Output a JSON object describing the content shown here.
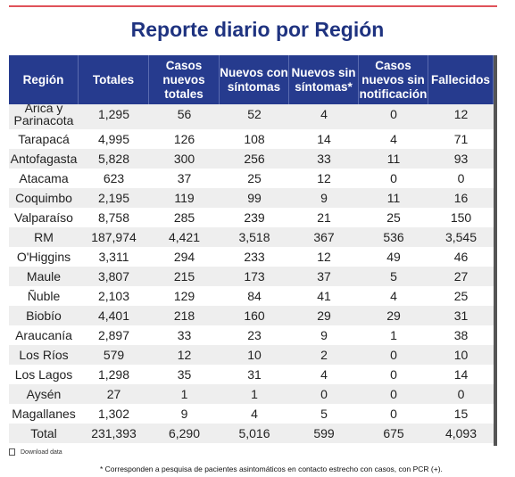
{
  "header": {
    "title": "Reporte diario por Región"
  },
  "table": {
    "columns": [
      "Región",
      "Totales",
      "Casos nuevos totales",
      "Nuevos con síntomas",
      "Nuevos sin síntomas*",
      "Casos nuevos sin notificación",
      "Fallecidos"
    ],
    "rows": [
      [
        "Arica y Parinacota",
        "1,295",
        "56",
        "52",
        "4",
        "0",
        "12"
      ],
      [
        "Tarapacá",
        "4,995",
        "126",
        "108",
        "14",
        "4",
        "71"
      ],
      [
        "Antofagasta",
        "5,828",
        "300",
        "256",
        "33",
        "11",
        "93"
      ],
      [
        "Atacama",
        "623",
        "37",
        "25",
        "12",
        "0",
        "0"
      ],
      [
        "Coquimbo",
        "2,195",
        "119",
        "99",
        "9",
        "11",
        "16"
      ],
      [
        "Valparaíso",
        "8,758",
        "285",
        "239",
        "21",
        "25",
        "150"
      ],
      [
        "RM",
        "187,974",
        "4,421",
        "3,518",
        "367",
        "536",
        "3,545"
      ],
      [
        "O'Higgins",
        "3,311",
        "294",
        "233",
        "12",
        "49",
        "46"
      ],
      [
        "Maule",
        "3,807",
        "215",
        "173",
        "37",
        "5",
        "27"
      ],
      [
        "Ñuble",
        "2,103",
        "129",
        "84",
        "41",
        "4",
        "25"
      ],
      [
        "Biobío",
        "4,401",
        "218",
        "160",
        "29",
        "29",
        "31"
      ],
      [
        "Araucanía",
        "2,897",
        "33",
        "23",
        "9",
        "1",
        "38"
      ],
      [
        "Los Ríos",
        "579",
        "12",
        "10",
        "2",
        "0",
        "10"
      ],
      [
        "Los Lagos",
        "1,298",
        "35",
        "31",
        "4",
        "0",
        "14"
      ],
      [
        "Aysén",
        "27",
        "1",
        "1",
        "0",
        "0",
        "0"
      ],
      [
        "Magallanes",
        "1,302",
        "9",
        "4",
        "5",
        "0",
        "15"
      ],
      [
        "Total",
        "231,393",
        "6,290",
        "5,016",
        "599",
        "675",
        "4,093"
      ]
    ]
  },
  "footer": {
    "download": "Download data",
    "note": "* Corresponden a pesquisa de pacientes asintomáticos en contacto estrecho con casos, con PCR (+)."
  }
}
